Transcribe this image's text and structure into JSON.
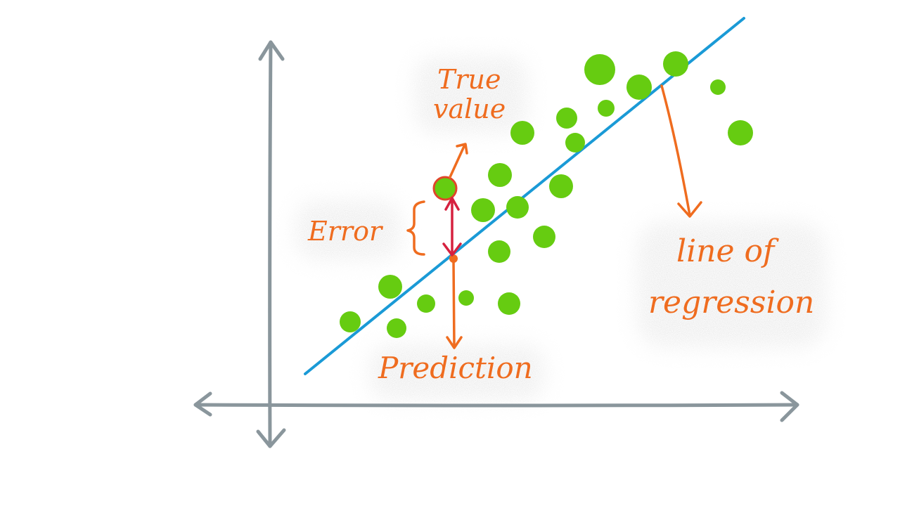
{
  "labels": {
    "true_value_line1": "True",
    "true_value_line2": "value",
    "error": "Error",
    "prediction": "Prediction",
    "line_of_regression_line1": "line of",
    "line_of_regression_line2": "regression"
  },
  "colors": {
    "axes": "#8a969c",
    "regression_line": "#1a9ad6",
    "points": "#66cc11",
    "annotation": "#ef6c1f",
    "error_arrow": "#d6213f"
  },
  "icons": [
    "arrow-icon",
    "brace-icon"
  ]
}
